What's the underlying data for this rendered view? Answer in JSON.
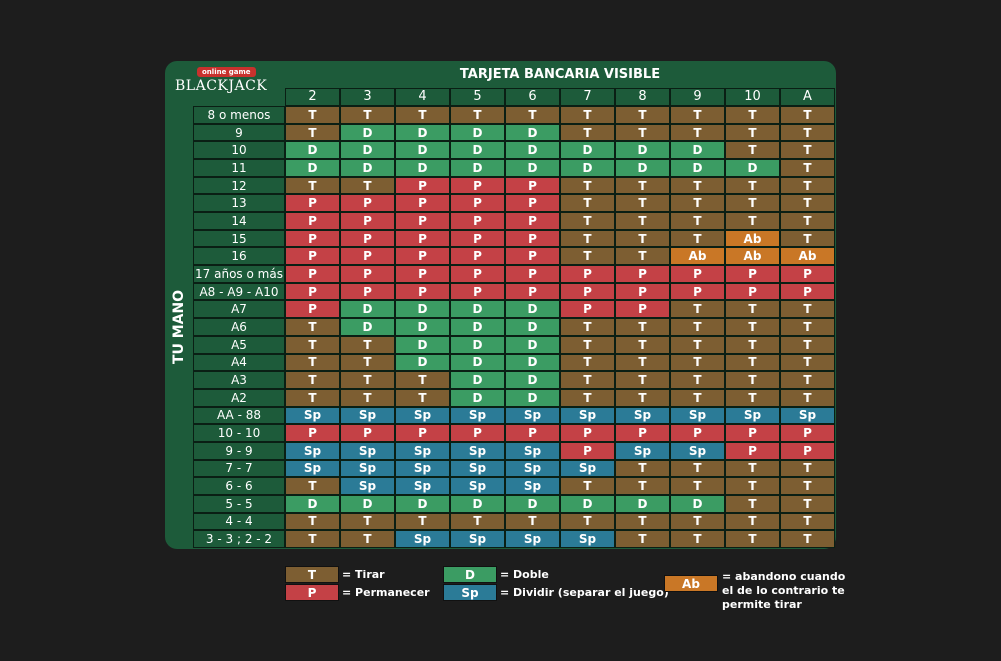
{
  "logo": {
    "badge": "online game",
    "wordmark": "BLACKJACK"
  },
  "title": "TARJETA BANCARIA VISIBLE",
  "side_label": "TU MANO",
  "columns": [
    "2",
    "3",
    "4",
    "5",
    "6",
    "7",
    "8",
    "9",
    "10",
    "A"
  ],
  "rows": [
    {
      "label": "8 o menos",
      "cells": [
        "T",
        "T",
        "T",
        "T",
        "T",
        "T",
        "T",
        "T",
        "T",
        "T"
      ]
    },
    {
      "label": "9",
      "cells": [
        "T",
        "D",
        "D",
        "D",
        "D",
        "T",
        "T",
        "T",
        "T",
        "T"
      ]
    },
    {
      "label": "10",
      "cells": [
        "D",
        "D",
        "D",
        "D",
        "D",
        "D",
        "D",
        "D",
        "T",
        "T"
      ]
    },
    {
      "label": "11",
      "cells": [
        "D",
        "D",
        "D",
        "D",
        "D",
        "D",
        "D",
        "D",
        "D",
        "T"
      ]
    },
    {
      "label": "12",
      "cells": [
        "T",
        "T",
        "P",
        "P",
        "P",
        "T",
        "T",
        "T",
        "T",
        "T"
      ]
    },
    {
      "label": "13",
      "cells": [
        "P",
        "P",
        "P",
        "P",
        "P",
        "T",
        "T",
        "T",
        "T",
        "T"
      ]
    },
    {
      "label": "14",
      "cells": [
        "P",
        "P",
        "P",
        "P",
        "P",
        "T",
        "T",
        "T",
        "T",
        "T"
      ]
    },
    {
      "label": "15",
      "cells": [
        "P",
        "P",
        "P",
        "P",
        "P",
        "T",
        "T",
        "T",
        "Ab",
        "T"
      ]
    },
    {
      "label": "16",
      "cells": [
        "P",
        "P",
        "P",
        "P",
        "P",
        "T",
        "T",
        "Ab",
        "Ab",
        "Ab"
      ]
    },
    {
      "label": "17 años o más",
      "cells": [
        "P",
        "P",
        "P",
        "P",
        "P",
        "P",
        "P",
        "P",
        "P",
        "P"
      ]
    },
    {
      "label": "A8 - A9 - A10",
      "cells": [
        "P",
        "P",
        "P",
        "P",
        "P",
        "P",
        "P",
        "P",
        "P",
        "P"
      ]
    },
    {
      "label": "A7",
      "cells": [
        "P",
        "D",
        "D",
        "D",
        "D",
        "P",
        "P",
        "T",
        "T",
        "T"
      ]
    },
    {
      "label": "A6",
      "cells": [
        "T",
        "D",
        "D",
        "D",
        "D",
        "T",
        "T",
        "T",
        "T",
        "T"
      ]
    },
    {
      "label": "A5",
      "cells": [
        "T",
        "T",
        "D",
        "D",
        "D",
        "T",
        "T",
        "T",
        "T",
        "T"
      ]
    },
    {
      "label": "A4",
      "cells": [
        "T",
        "T",
        "D",
        "D",
        "D",
        "T",
        "T",
        "T",
        "T",
        "T"
      ]
    },
    {
      "label": "A3",
      "cells": [
        "T",
        "T",
        "T",
        "D",
        "D",
        "T",
        "T",
        "T",
        "T",
        "T"
      ]
    },
    {
      "label": "A2",
      "cells": [
        "T",
        "T",
        "T",
        "D",
        "D",
        "T",
        "T",
        "T",
        "T",
        "T"
      ]
    },
    {
      "label": "AA - 88",
      "cells": [
        "Sp",
        "Sp",
        "Sp",
        "Sp",
        "Sp",
        "Sp",
        "Sp",
        "Sp",
        "Sp",
        "Sp"
      ]
    },
    {
      "label": "10 - 10",
      "cells": [
        "P",
        "P",
        "P",
        "P",
        "P",
        "P",
        "P",
        "P",
        "P",
        "P"
      ]
    },
    {
      "label": "9 - 9",
      "cells": [
        "Sp",
        "Sp",
        "Sp",
        "Sp",
        "Sp",
        "P",
        "Sp",
        "Sp",
        "P",
        "P"
      ]
    },
    {
      "label": "7 - 7",
      "cells": [
        "Sp",
        "Sp",
        "Sp",
        "Sp",
        "Sp",
        "Sp",
        "T",
        "T",
        "T",
        "T"
      ]
    },
    {
      "label": "6 - 6",
      "cells": [
        "T",
        "Sp",
        "Sp",
        "Sp",
        "Sp",
        "T",
        "T",
        "T",
        "T",
        "T"
      ]
    },
    {
      "label": "5 - 5",
      "cells": [
        "D",
        "D",
        "D",
        "D",
        "D",
        "D",
        "D",
        "D",
        "T",
        "T"
      ]
    },
    {
      "label": "4 - 4",
      "cells": [
        "T",
        "T",
        "T",
        "T",
        "T",
        "T",
        "T",
        "T",
        "T",
        "T"
      ]
    },
    {
      "label": "3 - 3 ; 2 - 2",
      "cells": [
        "T",
        "T",
        "Sp",
        "Sp",
        "Sp",
        "Sp",
        "T",
        "T",
        "T",
        "T"
      ]
    }
  ],
  "legend": {
    "tirar": {
      "code": "T",
      "text": "= Tirar"
    },
    "permanecer": {
      "code": "P",
      "text": "= Permanecer"
    },
    "doble": {
      "code": "D",
      "text": "= Doble"
    },
    "dividir": {
      "code": "Sp",
      "text": "= Dividir (separar el juego)"
    },
    "abandono": {
      "code": "Ab",
      "text": "= abandono cuando el de lo contrario te permite tirar"
    }
  },
  "colors": {
    "card_bg": "#1d5b3a",
    "T": "#7d5e32",
    "P": "#c44146",
    "D": "#3b9c63",
    "Sp": "#2b7b97",
    "Ab": "#c97726"
  }
}
